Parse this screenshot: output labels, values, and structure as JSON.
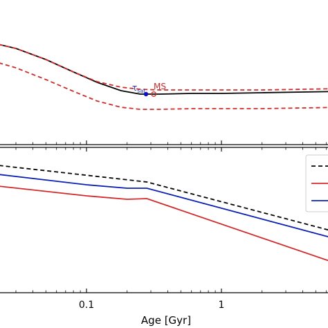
{
  "chart_data": [
    {
      "type": "line",
      "panel": "top",
      "xscale": "log",
      "xlim": [
        0.02,
        8
      ],
      "grid": false,
      "series": [
        {
          "name": "",
          "color": "#000000",
          "dash": "solid",
          "x": [
            0.02,
            0.03,
            0.05,
            0.08,
            0.12,
            0.18,
            0.25,
            0.35,
            0.6,
            1.0,
            2.0,
            4.0,
            8.0
          ],
          "y": [
            62,
            70,
            86,
            104,
            119,
            131,
            136,
            136,
            135,
            135,
            134,
            133,
            132
          ]
        },
        {
          "name": "",
          "color": "#d62728",
          "dash": "dashed",
          "x": [
            0.02,
            0.03,
            0.05,
            0.08,
            0.12,
            0.18,
            0.25,
            0.35,
            0.6,
            1.0,
            2.0,
            4.0,
            8.0
          ],
          "y": [
            62,
            70,
            86,
            104,
            118,
            126,
            129,
            130,
            130,
            130,
            130,
            129,
            128
          ]
        },
        {
          "name": "",
          "color": "#d62728",
          "dash": "dashed",
          "x": [
            0.02,
            0.03,
            0.05,
            0.08,
            0.12,
            0.18,
            0.25,
            0.35,
            0.6,
            1.0,
            2.0,
            4.0,
            8.0
          ],
          "y": [
            88,
            98,
            115,
            132,
            146,
            155,
            158,
            158,
            157,
            157,
            157,
            156,
            155
          ]
        }
      ],
      "annotations": [
        {
          "text": "τ",
          "subscript": "sat",
          "color": "#1f3fbf",
          "x": 0.25,
          "y": 128
        },
        {
          "text": "MS",
          "color": "#d62728",
          "x": 0.34,
          "y": 126
        }
      ],
      "markers": [
        {
          "kind": "filled-circle",
          "color": "#1010cc",
          "x": 0.276,
          "y": 136
        },
        {
          "kind": "open-circle",
          "color": "#d62728",
          "x": 0.315,
          "y": 136
        }
      ]
    },
    {
      "type": "line",
      "panel": "bottom",
      "xscale": "log",
      "xlim": [
        0.02,
        8
      ],
      "xlabel": "Age [Gyr]",
      "xticks": [
        {
          "value": 0.1,
          "label": "0.1"
        },
        {
          "value": 1,
          "label": "1"
        }
      ],
      "grid": false,
      "legend": "top-right",
      "legend_entries": [
        {
          "color": "#000000",
          "dash": "dashed",
          "label": ""
        },
        {
          "color": "#d62728",
          "dash": "solid",
          "label": ""
        },
        {
          "color": "#0a1fb5",
          "dash": "solid",
          "label": ""
        }
      ],
      "series": [
        {
          "name": "",
          "color": "#000000",
          "dash": "dashed",
          "x": [
            0.02,
            0.28,
            8.0
          ],
          "y": [
            238,
            263,
            338
          ]
        },
        {
          "name": "",
          "color": "#0a1fb5",
          "dash": "solid",
          "x": [
            0.02,
            0.1,
            0.2,
            0.28,
            8.0
          ],
          "y": [
            251,
            267,
            272,
            272,
            348
          ]
        },
        {
          "name": "",
          "color": "#d62728",
          "dash": "solid",
          "x": [
            0.02,
            0.1,
            0.2,
            0.28,
            8.0
          ],
          "y": [
            268,
            283,
            288,
            287,
            384
          ]
        }
      ]
    }
  ]
}
